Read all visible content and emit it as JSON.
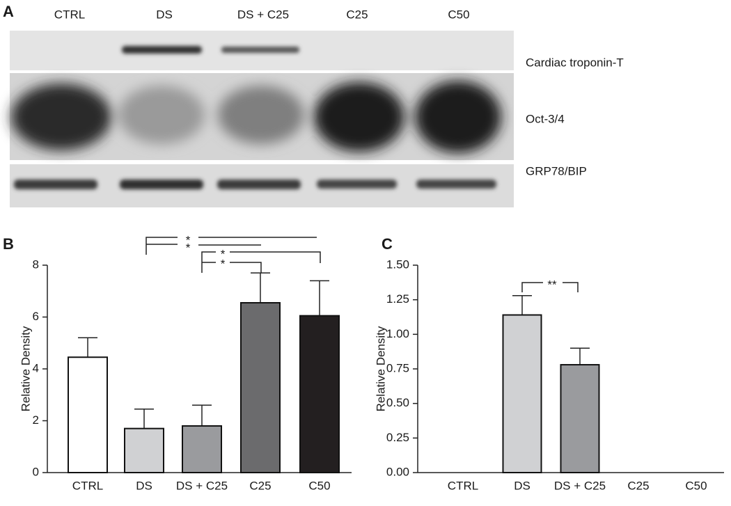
{
  "blot": {
    "panel": "A",
    "lanes": [
      "CTRL",
      "DS",
      "DS + C25",
      "C25",
      "C50"
    ],
    "bands": [
      "Cardiac troponin-T",
      "Oct-3/4",
      "GRP78/BIP"
    ]
  },
  "chart_data": [
    {
      "type": "bar",
      "panel": "B",
      "ylabel": "Relative Density",
      "categories": [
        "CTRL",
        "DS",
        "DS + C25",
        "C25",
        "C50"
      ],
      "values": [
        4.45,
        1.7,
        1.8,
        6.55,
        6.05
      ],
      "errors": [
        0.75,
        0.75,
        0.8,
        1.15,
        1.35
      ],
      "colors": [
        "#ffffff",
        "#d0d1d3",
        "#9a9b9e",
        "#6b6b6d",
        "#231f20"
      ],
      "ylim": [
        0,
        8
      ],
      "yticks": [
        0,
        2,
        4,
        6,
        8
      ],
      "significance": [
        "*",
        "*",
        "*",
        "*"
      ]
    },
    {
      "type": "bar",
      "panel": "C",
      "ylabel": "Relative Density",
      "categories": [
        "CTRL",
        "DS",
        "DS + C25",
        "C25",
        "C50"
      ],
      "values": [
        0,
        1.14,
        0.78,
        0,
        0
      ],
      "errors": [
        0,
        0.14,
        0.12,
        0,
        0
      ],
      "colors": [
        "#ffffff",
        "#d0d1d3",
        "#9a9b9e",
        "#6b6b6d",
        "#231f20"
      ],
      "ylim": [
        0,
        1.5
      ],
      "yticks": [
        {
          "value": 0,
          "label": "0.00"
        },
        {
          "value": 0.25,
          "label": "0.25"
        },
        {
          "value": 0.5,
          "label": "0.50"
        },
        {
          "value": 0.75,
          "label": "0.75"
        },
        {
          "value": 1,
          "label": "1.00"
        },
        {
          "value": 1.25,
          "label": "1.25"
        },
        {
          "value": 1.5,
          "label": "1.50"
        }
      ],
      "significance": [
        "**"
      ]
    }
  ]
}
